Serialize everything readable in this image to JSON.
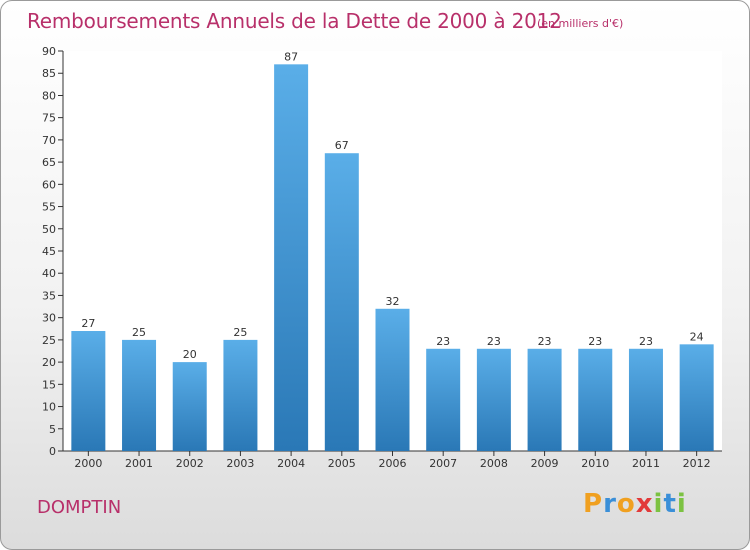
{
  "header": {
    "title": "Remboursements Annuels de la Dette de 2000 à 2012",
    "unit_note": "(en milliers d'€)"
  },
  "footer": {
    "commune": "DOMPTIN",
    "logo_text": "Proxiti"
  },
  "colors": {
    "accent_text": "#b8306a",
    "bar_top": "#5aaee8",
    "bar_bottom": "#2a78b6",
    "plot_background": "#ffffff"
  },
  "chart_data": {
    "type": "bar",
    "title": "Remboursements Annuels de la Dette de 2000 à 2012",
    "subtitle": "(en milliers d'€)",
    "categories": [
      "2000",
      "2001",
      "2002",
      "2003",
      "2004",
      "2005",
      "2006",
      "2007",
      "2008",
      "2009",
      "2010",
      "2011",
      "2012"
    ],
    "values": [
      27,
      25,
      20,
      25,
      87,
      67,
      32,
      23,
      23,
      23,
      23,
      23,
      24
    ],
    "ylim": [
      0,
      90
    ],
    "yticks": [
      0,
      5,
      10,
      15,
      20,
      25,
      30,
      35,
      40,
      45,
      50,
      55,
      60,
      65,
      70,
      75,
      80,
      85,
      90
    ],
    "grid": false,
    "data_labels": true
  }
}
